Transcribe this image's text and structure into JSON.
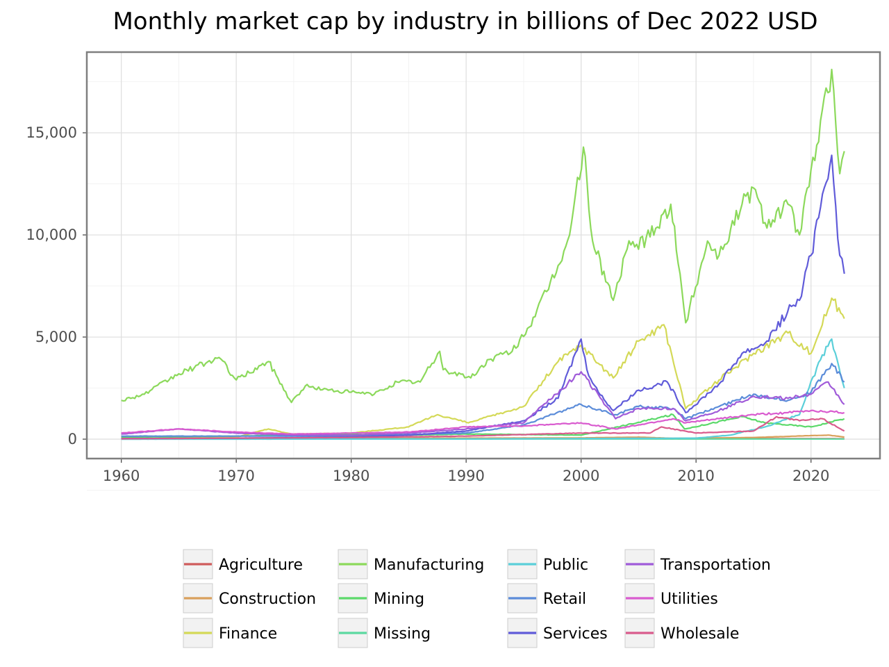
{
  "chart_data": {
    "type": "line",
    "title": "Monthly market cap by industry in billions of Dec 2022 USD",
    "xlabel": "",
    "ylabel": "",
    "xlim": [
      1957,
      2026
    ],
    "ylim": [
      -950,
      18950
    ],
    "x_ticks": [
      1960,
      1970,
      1980,
      1990,
      2000,
      2010,
      2020
    ],
    "x_tick_labels": [
      "1960",
      "1970",
      "1980",
      "1990",
      "2000",
      "2010",
      "2020"
    ],
    "y_ticks": [
      0,
      5000,
      10000,
      15000
    ],
    "y_tick_labels": [
      "0",
      "5,000",
      "10,000",
      "15,000"
    ],
    "grid": true,
    "legend_position": "bottom",
    "series": [
      {
        "name": "Agriculture",
        "color": "#cf5c5c",
        "x": [
          1960,
          1970,
          1980,
          1990,
          2000,
          2010,
          2020,
          2022.9
        ],
        "values": [
          10,
          15,
          15,
          20,
          25,
          20,
          25,
          20
        ]
      },
      {
        "name": "Construction",
        "color": "#d9a05b",
        "x": [
          1960,
          1970,
          1980,
          1990,
          2000,
          2005,
          2008,
          2015,
          2021.5,
          2022.9
        ],
        "values": [
          30,
          40,
          40,
          50,
          60,
          100,
          40,
          80,
          200,
          100
        ]
      },
      {
        "name": "Finance",
        "color": "#d4d957",
        "x": [
          1960,
          1970,
          1972.8,
          1974.8,
          1980,
          1985,
          1987.5,
          1990.2,
          1995,
          1998,
          2000,
          2002.8,
          2005,
          2007.2,
          2009.1,
          2012,
          2015,
          2018,
          2020,
          2021.8,
          2022.9
        ],
        "values": [
          20,
          100,
          500,
          250,
          300,
          600,
          1200,
          800,
          1600,
          3800,
          4600,
          3000,
          4800,
          5600,
          1500,
          2900,
          4200,
          5200,
          4200,
          6900,
          5900
        ]
      },
      {
        "name": "Manufacturing",
        "color": "#8cd95b",
        "x": [
          1960,
          1962,
          1965,
          1968.5,
          1970,
          1972.8,
          1974.8,
          1976,
          1978,
          1980,
          1982,
          1984,
          1986,
          1987.7,
          1988,
          1990.4,
          1992,
          1994,
          1996,
          1998,
          1999,
          2000.2,
          2001,
          2002.8,
          2004,
          2006,
          2007.8,
          2009.1,
          2011,
          2012,
          2014,
          2015,
          2016,
          2018,
          2019,
          2020.5,
          2021.8,
          2022.5,
          2022.9
        ],
        "values": [
          1900,
          2200,
          3200,
          4000,
          2900,
          3800,
          1800,
          2600,
          2400,
          2300,
          2200,
          2800,
          2800,
          4300,
          3400,
          3000,
          3900,
          4300,
          6000,
          8500,
          10000,
          14300,
          9700,
          6800,
          9300,
          9900,
          11500,
          5700,
          9700,
          9000,
          11500,
          12300,
          10600,
          11500,
          10000,
          14400,
          18100,
          13000,
          14100
        ]
      },
      {
        "name": "Mining",
        "color": "#5bd96a",
        "x": [
          1960,
          1970,
          1980,
          1981,
          1985,
          1990,
          2000,
          2008,
          2009,
          2014,
          2016,
          2020,
          2022.9
        ],
        "values": [
          100,
          150,
          250,
          300,
          200,
          250,
          200,
          1200,
          500,
          1100,
          800,
          600,
          1000
        ]
      },
      {
        "name": "Missing",
        "color": "#5bd9a0",
        "x": [
          1960,
          1980,
          2000,
          2022.9
        ],
        "values": [
          5,
          5,
          10,
          10
        ]
      },
      {
        "name": "Public",
        "color": "#5bcfd9",
        "x": [
          1960,
          1990,
          2000,
          2010,
          2013,
          2016,
          2019,
          2020.5,
          2021.8,
          2022.9
        ],
        "values": [
          0,
          10,
          30,
          50,
          200,
          600,
          1200,
          3500,
          4900,
          2500
        ]
      },
      {
        "name": "Retail",
        "color": "#5b8cd9",
        "x": [
          1960,
          1970,
          1980,
          1990,
          1995,
          2000,
          2003,
          2005,
          2008,
          2009.1,
          2012,
          2015,
          2018,
          2020,
          2021.8,
          2022.9
        ],
        "values": [
          150,
          150,
          150,
          300,
          700,
          1700,
          1200,
          1600,
          1500,
          1000,
          1600,
          2200,
          1900,
          2300,
          3700,
          2800
        ]
      },
      {
        "name": "Services",
        "color": "#605bd9",
        "x": [
          1960,
          1970,
          1980,
          1985,
          1990,
          1995,
          1998,
          2000,
          2000.5,
          2001.5,
          2002.8,
          2005,
          2007.5,
          2009.1,
          2012,
          2014,
          2016,
          2018.3,
          2019,
          2020,
          2021,
          2021.8,
          2022.5,
          2022.9
        ],
        "values": [
          30,
          50,
          100,
          200,
          400,
          900,
          2000,
          4900,
          3400,
          2300,
          1400,
          2400,
          2800,
          1300,
          2700,
          4200,
          4700,
          6500,
          6800,
          9000,
          12000,
          13900,
          9000,
          8100
        ]
      },
      {
        "name": "Transportation",
        "color": "#a05bd9",
        "x": [
          1960,
          1965,
          1970,
          1975,
          1980,
          1985,
          1990,
          1995,
          2000,
          2003,
          2005,
          2008,
          2009.1,
          2012,
          2015,
          2018,
          2020,
          2021.5,
          2022.9
        ],
        "values": [
          250,
          500,
          300,
          200,
          200,
          300,
          500,
          800,
          3300,
          1000,
          1500,
          1500,
          900,
          1400,
          2100,
          2000,
          2200,
          2800,
          1700
        ]
      },
      {
        "name": "Utilities",
        "color": "#d95bcf",
        "x": [
          1960,
          1965,
          1970,
          1975,
          1980,
          1985,
          1990,
          1995,
          2000,
          2003,
          2005,
          2008,
          2009.1,
          2012,
          2015,
          2018,
          2020,
          2022.9
        ],
        "values": [
          300,
          500,
          350,
          250,
          300,
          350,
          600,
          650,
          800,
          500,
          700,
          1000,
          800,
          1000,
          1200,
          1300,
          1400,
          1300
        ]
      },
      {
        "name": "Wholesale",
        "color": "#d95b8c",
        "x": [
          1960,
          1970,
          1980,
          1990,
          2000,
          2006,
          2007,
          2010,
          2015,
          2017,
          2019,
          2021,
          2022.9
        ],
        "values": [
          20,
          50,
          80,
          150,
          300,
          300,
          600,
          300,
          400,
          1100,
          900,
          1000,
          400
        ]
      }
    ]
  }
}
